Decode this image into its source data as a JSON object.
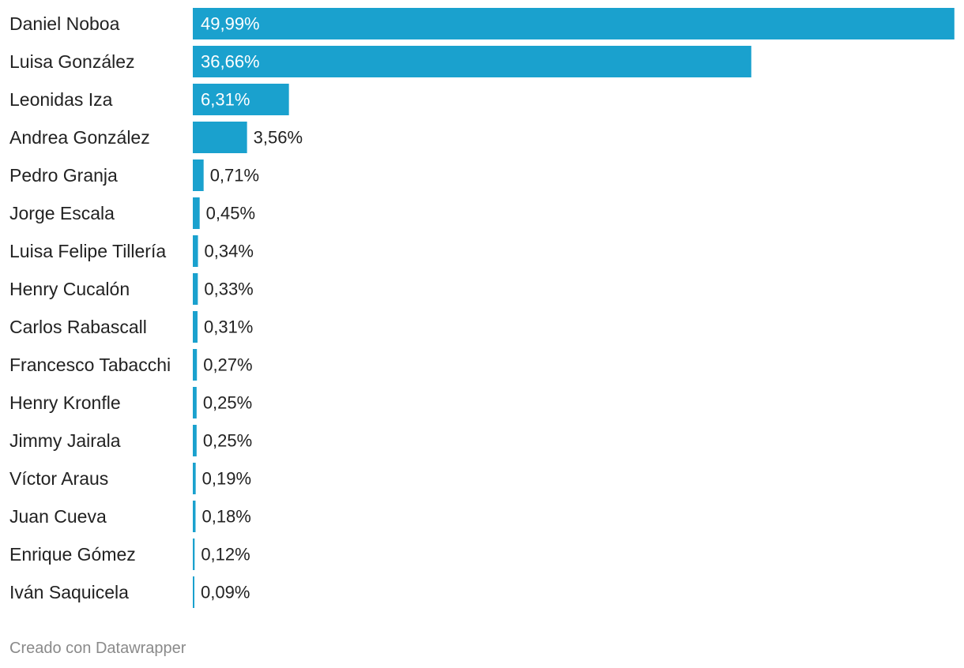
{
  "chart_data": {
    "type": "bar",
    "orientation": "horizontal",
    "categories": [
      "Daniel Noboa",
      "Luisa González",
      "Leonidas Iza",
      "Andrea González",
      "Pedro Granja",
      "Jorge Escala",
      "Luisa Felipe Tillería",
      "Henry Cucalón",
      "Carlos Rabascall",
      "Francesco Tabacchi",
      "Henry Kronfle",
      "Jimmy Jairala",
      "Víctor Araus",
      "Juan Cueva",
      "Enrique Gómez",
      "Iván Saquicela"
    ],
    "values": [
      49.99,
      36.66,
      6.31,
      3.56,
      0.71,
      0.45,
      0.34,
      0.33,
      0.31,
      0.27,
      0.25,
      0.25,
      0.19,
      0.18,
      0.12,
      0.09
    ],
    "value_labels": [
      "49,99%",
      "36,66%",
      "6,31%",
      "3,56%",
      "0,71%",
      "0,45%",
      "0,34%",
      "0,33%",
      "0,31%",
      "0,27%",
      "0,25%",
      "0,25%",
      "0,19%",
      "0,18%",
      "0,12%",
      "0,09%"
    ],
    "xlim": [
      0,
      50
    ],
    "bar_color": "#1aa1ce",
    "grid": false,
    "legend": "none"
  },
  "footer": {
    "credit": "Creado con Datawrapper"
  }
}
